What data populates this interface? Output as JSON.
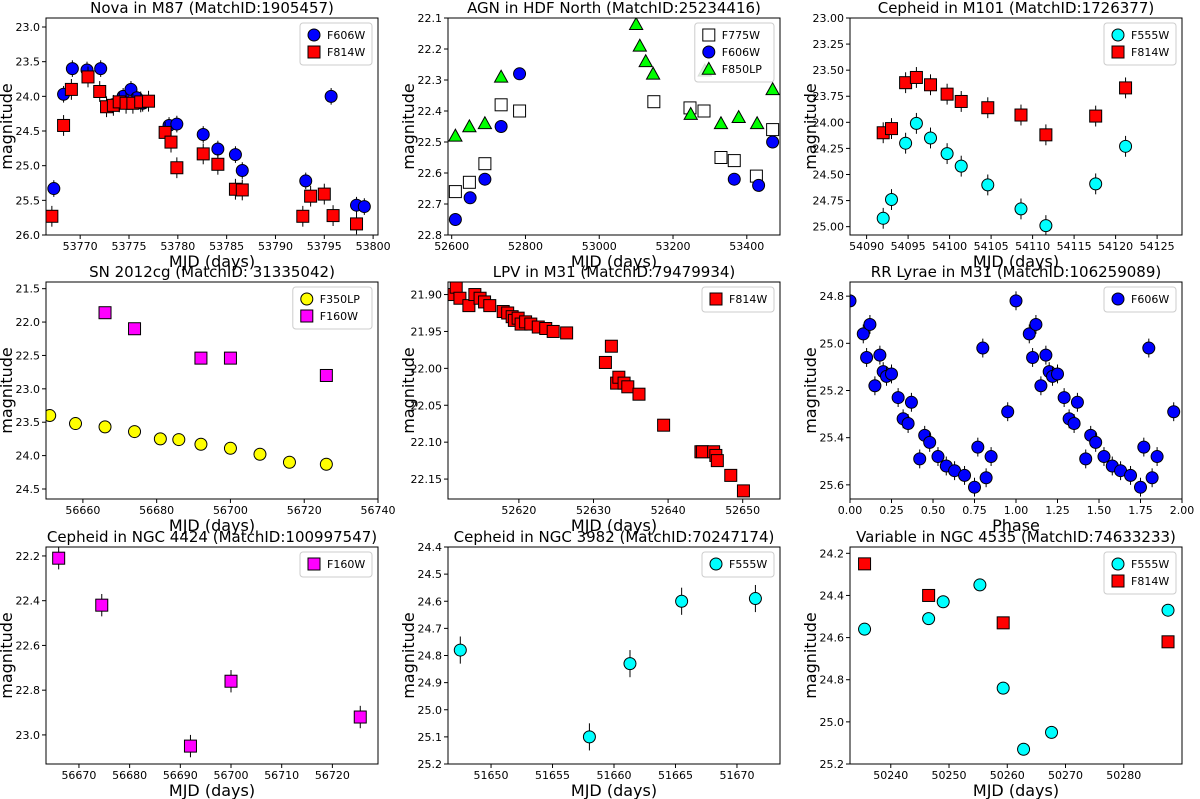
{
  "chart_data": [
    {
      "type": "scatter",
      "title": "Nova in M87 (MatchID:1905457)",
      "xlabel": "MJD (days)",
      "ylabel": "magnitude",
      "xlim": [
        53766.5,
        53800.5
      ],
      "ylim": [
        26.0,
        22.87
      ],
      "y_inverted": true,
      "xticks": [
        53770,
        53775,
        53780,
        53785,
        53790,
        53795,
        53800
      ],
      "yticks": [
        23.0,
        23.5,
        24.0,
        24.5,
        25.0,
        25.5,
        26.0
      ],
      "yticklabels": [
        "23.0",
        "23.5",
        "24.0",
        "24.5",
        "25.0",
        "25.5",
        "26.0"
      ],
      "legend": "top-right",
      "series": [
        {
          "name": "F606W",
          "marker": "circle",
          "color": "#0000ff",
          "err": 0.12,
          "x": [
            53767.3,
            53768.3,
            53769.2,
            53770.7,
            53772.1,
            53773.4,
            53774.4,
            53775.2,
            53775.8,
            53776.4,
            53779.1,
            53779.9,
            53782.6,
            53784.1,
            53785.9,
            53786.6,
            53793.1,
            53795.7,
            53798.3,
            53799.1
          ],
          "y": [
            25.33,
            23.97,
            23.6,
            23.62,
            23.6,
            24.12,
            24.0,
            23.9,
            24.02,
            24.1,
            24.42,
            24.4,
            24.55,
            24.76,
            24.84,
            25.07,
            25.22,
            24.0,
            25.57,
            25.59
          ]
        },
        {
          "name": "F814W",
          "marker": "square",
          "color": "#ff0000",
          "err": 0.15,
          "x": [
            53767.1,
            53768.3,
            53769.1,
            53770.8,
            53772.0,
            53772.7,
            53773.4,
            53774.0,
            53774.7,
            53775.4,
            53776.2,
            53777.0,
            53778.7,
            53779.3,
            53779.9,
            53782.6,
            53784.1,
            53785.9,
            53786.6,
            53792.8,
            53793.6,
            53795.0,
            53795.9,
            53798.3
          ],
          "y": [
            25.73,
            24.42,
            23.9,
            23.72,
            23.93,
            24.15,
            24.13,
            24.08,
            24.1,
            24.1,
            24.08,
            24.07,
            24.52,
            24.66,
            25.03,
            24.83,
            24.98,
            25.34,
            25.35,
            25.73,
            25.44,
            25.41,
            25.72,
            25.84
          ]
        }
      ]
    },
    {
      "type": "scatter",
      "title": "AGN in HDF North (MatchID:25234416)",
      "xlabel": "MJD (days)",
      "ylabel": "magnitude",
      "xlim": [
        52590,
        53490
      ],
      "ylim": [
        22.8,
        22.1
      ],
      "y_inverted": true,
      "xticks": [
        52600,
        52800,
        53000,
        53200,
        53400
      ],
      "yticks": [
        22.1,
        22.2,
        22.3,
        22.4,
        22.5,
        22.6,
        22.7,
        22.8
      ],
      "yticklabels": [
        "22.1",
        "22.2",
        "22.3",
        "22.4",
        "22.5",
        "22.6",
        "22.7",
        "22.8"
      ],
      "legend": "top-right",
      "series": [
        {
          "name": "F775W",
          "marker": "square",
          "color": "#ffffff",
          "x": [
            52610,
            52648,
            52690,
            52734,
            52784,
            53148,
            53246,
            53284,
            53330,
            53366,
            53426,
            53470
          ],
          "y": [
            22.66,
            22.63,
            22.57,
            22.38,
            22.4,
            22.37,
            22.39,
            22.4,
            22.55,
            22.56,
            22.61,
            22.46
          ]
        },
        {
          "name": "F606W",
          "marker": "circle",
          "color": "#0000ff",
          "x": [
            52610,
            52650,
            52690,
            52734,
            52784,
            53366,
            53432,
            53470
          ],
          "y": [
            22.75,
            22.68,
            22.62,
            22.45,
            22.28,
            22.62,
            22.64,
            22.5
          ]
        },
        {
          "name": "F850LP",
          "marker": "triangle",
          "color": "#00ff00",
          "x": [
            52610,
            52648,
            52690,
            52734,
            53100,
            53110,
            53126,
            53146,
            53248,
            53286,
            53330,
            53378,
            53428,
            53470
          ],
          "y": [
            22.48,
            22.45,
            22.44,
            22.29,
            22.12,
            22.19,
            22.24,
            22.28,
            22.41,
            22.27,
            22.44,
            22.42,
            22.44,
            22.33
          ]
        }
      ]
    },
    {
      "type": "scatter",
      "title": "Cepheid in M101 (MatchID:1726377)",
      "xlabel": "MJD (days)",
      "ylabel": "magnitude",
      "xlim": [
        54088,
        54128
      ],
      "ylim": [
        25.08,
        23.0
      ],
      "y_inverted": true,
      "xticks": [
        54090,
        54095,
        54100,
        54105,
        54110,
        54115,
        54120,
        54125
      ],
      "yticks": [
        23.0,
        23.25,
        23.5,
        23.75,
        24.0,
        24.25,
        24.5,
        24.75,
        25.0
      ],
      "yticklabels": [
        "23.00",
        "23.25",
        "23.50",
        "23.75",
        "24.00",
        "24.25",
        "24.50",
        "24.75",
        "25.00"
      ],
      "legend": "top-right",
      "series": [
        {
          "name": "F555W",
          "marker": "circle",
          "color": "#00ffff",
          "err": 0.1,
          "x": [
            54092.0,
            54093.0,
            54094.7,
            54096.0,
            54097.7,
            54099.7,
            54101.4,
            54104.6,
            54108.6,
            54111.6,
            54117.6,
            54121.2
          ],
          "y": [
            24.92,
            24.74,
            24.2,
            24.01,
            24.15,
            24.3,
            24.42,
            24.6,
            24.83,
            24.99,
            24.59,
            24.23
          ]
        },
        {
          "name": "F814W",
          "marker": "square",
          "color": "#ff0000",
          "err": 0.1,
          "x": [
            54092.0,
            54093.0,
            54094.7,
            54096.0,
            54097.7,
            54099.7,
            54101.4,
            54104.6,
            54108.6,
            54111.6,
            54117.6,
            54121.2
          ],
          "y": [
            24.1,
            24.06,
            23.62,
            23.57,
            23.64,
            23.73,
            23.8,
            23.86,
            23.93,
            24.12,
            23.94,
            23.67
          ]
        }
      ]
    },
    {
      "type": "scatter",
      "title": "SN 2012cg (MatchID: 31335042)",
      "xlabel": "MJD (days)",
      "ylabel": "magnitude",
      "xlim": [
        56650,
        56740
      ],
      "ylim": [
        24.65,
        21.4
      ],
      "y_inverted": true,
      "xticks": [
        56660,
        56680,
        56700,
        56720,
        56740
      ],
      "yticks": [
        21.5,
        22.0,
        22.5,
        23.0,
        23.5,
        24.0,
        24.5
      ],
      "yticklabels": [
        "21.5",
        "22.0",
        "22.5",
        "23.0",
        "23.5",
        "24.0",
        "24.5"
      ],
      "legend": "top-right",
      "series": [
        {
          "name": "F350LP",
          "marker": "circle",
          "color": "#ffff00",
          "x": [
            56651,
            56658,
            56666,
            56674,
            56681,
            56686,
            56692,
            56700,
            56708,
            56716,
            56726
          ],
          "y": [
            23.4,
            23.52,
            23.57,
            23.64,
            23.75,
            23.76,
            23.83,
            23.89,
            23.98,
            24.1,
            24.13
          ]
        },
        {
          "name": "F160W",
          "marker": "square",
          "color": "#ff00ff",
          "x": [
            56666,
            56674,
            56692,
            56700,
            56726
          ],
          "y": [
            21.86,
            22.1,
            22.54,
            22.54,
            22.8
          ]
        }
      ]
    },
    {
      "type": "scatter",
      "title": "LPV in M31 (MatchID:79479934)",
      "xlabel": "MJD (days)",
      "ylabel": "magnitude",
      "xlim": [
        52610.5,
        52655
      ],
      "ylim": [
        22.177,
        21.883
      ],
      "y_inverted": true,
      "xticks": [
        52610,
        52620,
        52630,
        52640,
        52650
      ],
      "yticks": [
        21.9,
        21.95,
        22.0,
        22.05,
        22.1,
        22.15
      ],
      "yticklabels": [
        "21.90",
        "21.95",
        "22.00",
        "22.05",
        "22.10",
        "22.15"
      ],
      "legend": "top-right",
      "series": [
        {
          "name": "F814W",
          "marker": "square",
          "color": "#ff0000",
          "x": [
            52611.1,
            52611.6,
            52612.1,
            52613.3,
            52614.1,
            52614.8,
            52615.4,
            52616.1,
            52617.9,
            52618.5,
            52619.1,
            52619.4,
            52619.9,
            52620.3,
            52620.9,
            52621.6,
            52622.6,
            52623.6,
            52624.6,
            52626.4,
            52631.6,
            52632.4,
            52633.1,
            52633.4,
            52634.1,
            52634.6,
            52636.1,
            52639.4,
            52644.4,
            52644.6,
            52646.1,
            52646.4,
            52646.6,
            52648.4,
            52650.1
          ],
          "y": [
            21.9,
            21.89,
            21.905,
            21.915,
            21.9,
            21.905,
            21.91,
            21.915,
            21.923,
            21.925,
            21.93,
            21.935,
            21.932,
            21.94,
            21.937,
            21.94,
            21.944,
            21.946,
            21.95,
            21.952,
            21.992,
            21.97,
            22.02,
            22.012,
            22.02,
            22.025,
            22.035,
            22.077,
            22.113,
            22.113,
            22.113,
            22.118,
            22.125,
            22.145,
            22.166
          ]
        }
      ]
    },
    {
      "type": "scatter",
      "title": "RR Lyrae in M31 (MatchID:106259089)",
      "xlabel": "Phase",
      "ylabel": "magnitude",
      "xlim": [
        0,
        2
      ],
      "ylim": [
        25.66,
        24.74
      ],
      "y_inverted": true,
      "xticks": [
        0,
        0.25,
        0.5,
        0.75,
        1.0,
        1.25,
        1.5,
        1.75,
        2.0
      ],
      "xticklabels": [
        "0.00",
        "0.25",
        "0.50",
        "0.75",
        "1.00",
        "1.25",
        "1.50",
        "1.75",
        "2.00"
      ],
      "yticks": [
        24.8,
        25.0,
        25.2,
        25.4,
        25.6
      ],
      "yticklabels": [
        "24.8",
        "25.0",
        "25.2",
        "25.4",
        "25.6"
      ],
      "legend": "top-right",
      "series": [
        {
          "name": "F606W",
          "marker": "circle",
          "color": "#0000ff",
          "err": 0.04,
          "x": [
            0.0,
            0.08,
            0.1,
            0.12,
            0.15,
            0.18,
            0.2,
            0.22,
            0.25,
            0.29,
            0.32,
            0.35,
            0.37,
            0.42,
            0.45,
            0.48,
            0.53,
            0.58,
            0.63,
            0.69,
            0.75,
            0.77,
            0.8,
            0.82,
            0.85,
            0.95,
            1.0,
            1.08,
            1.1,
            1.12,
            1.15,
            1.18,
            1.2,
            1.22,
            1.25,
            1.29,
            1.32,
            1.35,
            1.37,
            1.42,
            1.45,
            1.48,
            1.53,
            1.58,
            1.63,
            1.69,
            1.75,
            1.77,
            1.8,
            1.82,
            1.85,
            1.95
          ],
          "y": [
            24.82,
            24.96,
            25.06,
            24.92,
            25.18,
            25.05,
            25.12,
            25.14,
            25.13,
            25.23,
            25.32,
            25.34,
            25.25,
            25.49,
            25.39,
            25.42,
            25.48,
            25.52,
            25.54,
            25.56,
            25.61,
            25.44,
            25.02,
            25.57,
            25.48,
            25.29,
            24.82,
            24.96,
            25.06,
            24.92,
            25.18,
            25.05,
            25.12,
            25.14,
            25.13,
            25.23,
            25.32,
            25.34,
            25.25,
            25.49,
            25.39,
            25.42,
            25.48,
            25.52,
            25.54,
            25.56,
            25.61,
            25.44,
            25.02,
            25.57,
            25.48,
            25.29
          ]
        }
      ]
    },
    {
      "type": "scatter",
      "title": "Cepheid in NGC 4424 (MatchID:100997547)",
      "xlabel": "MJD (days)",
      "ylabel": "magnitude",
      "xlim": [
        56663.5,
        56729
      ],
      "ylim": [
        23.13,
        22.16
      ],
      "y_inverted": true,
      "xticks": [
        56670,
        56680,
        56690,
        56700,
        56710,
        56720
      ],
      "yticks": [
        22.2,
        22.4,
        22.6,
        22.8,
        23.0
      ],
      "yticklabels": [
        "22.2",
        "22.4",
        "22.6",
        "22.8",
        "23.0"
      ],
      "legend": "top-right",
      "series": [
        {
          "name": "F160W",
          "marker": "square",
          "color": "#ff00ff",
          "err": 0.05,
          "x": [
            56666,
            56674.5,
            56692,
            56700,
            56725.5
          ],
          "y": [
            22.21,
            22.42,
            23.05,
            22.76,
            22.92
          ]
        }
      ]
    },
    {
      "type": "scatter",
      "title": "Cepheid in NGC 3982 (MatchID:70247174)",
      "xlabel": "MJD (days)",
      "ylabel": "magnitude",
      "xlim": [
        51646.5,
        51673.5
      ],
      "ylim": [
        25.2,
        24.4
      ],
      "y_inverted": true,
      "xticks": [
        51650,
        51655,
        51660,
        51665,
        51670
      ],
      "yticks": [
        24.4,
        24.5,
        24.6,
        24.7,
        24.8,
        24.9,
        25.0,
        25.1,
        25.2
      ],
      "yticklabels": [
        "24.4",
        "24.5",
        "24.6",
        "24.7",
        "24.8",
        "24.9",
        "25.0",
        "25.1",
        "25.2"
      ],
      "legend": "top-right",
      "series": [
        {
          "name": "F555W",
          "marker": "circle",
          "color": "#00ffff",
          "err": 0.05,
          "x": [
            51647.5,
            51658.0,
            51661.3,
            51665.5,
            51671.5
          ],
          "y": [
            24.78,
            25.1,
            24.83,
            24.6,
            24.59
          ]
        }
      ]
    },
    {
      "type": "scatter",
      "title": "Variable in NGC 4535 (MatchID:74633233)",
      "xlabel": "MJD (days)",
      "ylabel": "magnitude",
      "xlim": [
        50233,
        50290
      ],
      "ylim": [
        25.2,
        24.17
      ],
      "y_inverted": true,
      "xticks": [
        50240,
        50250,
        50260,
        50270,
        50280
      ],
      "yticks": [
        24.2,
        24.4,
        24.6,
        24.8,
        25.0,
        25.2
      ],
      "yticklabels": [
        "24.2",
        "24.4",
        "24.6",
        "24.8",
        "25.0",
        "25.2"
      ],
      "legend": "top-right",
      "series": [
        {
          "name": "F555W",
          "marker": "circle",
          "color": "#00ffff",
          "x": [
            50235.5,
            50246.5,
            50249.0,
            50255.3,
            50259.3,
            50262.8,
            50267.6,
            50287.6
          ],
          "y": [
            24.56,
            24.51,
            24.43,
            24.35,
            24.84,
            25.13,
            25.05,
            24.47
          ]
        },
        {
          "name": "F814W",
          "marker": "square",
          "color": "#ff0000",
          "x": [
            50235.5,
            50246.5,
            50259.3,
            50287.6
          ],
          "y": [
            24.25,
            24.4,
            24.53,
            24.62
          ]
        }
      ]
    }
  ]
}
